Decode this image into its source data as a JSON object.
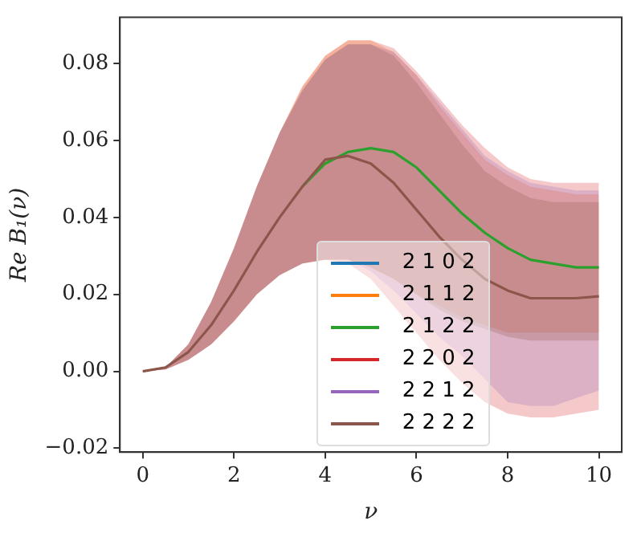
{
  "chart_data": {
    "type": "line",
    "xlabel": "ν",
    "ylabel": "Re B₁(ν)",
    "x": [
      0,
      0.5,
      1,
      1.5,
      2,
      2.5,
      3,
      3.5,
      4,
      4.5,
      5,
      5.5,
      6,
      6.5,
      7,
      7.5,
      8,
      8.5,
      9,
      9.5,
      10
    ],
    "series": [
      {
        "name": "2 1 0 2",
        "color": "#1f77b4",
        "values": [
          null,
          null,
          null,
          null,
          null,
          null,
          null,
          null,
          null,
          null,
          null,
          null,
          null,
          null,
          null,
          null,
          null,
          null,
          null,
          null,
          null
        ]
      },
      {
        "name": "2 1 1 2",
        "color": "#ff7f0e",
        "values": [
          null,
          null,
          null,
          null,
          null,
          null,
          null,
          null,
          null,
          null,
          null,
          null,
          null,
          null,
          null,
          null,
          null,
          null,
          null,
          null,
          null
        ],
        "lower": [
          0,
          0.0005,
          0.003,
          0.007,
          0.013,
          0.02,
          0.025,
          0.028,
          0.029,
          0.029,
          0.027,
          0.024,
          0.02,
          0.017,
          0.014,
          0.012,
          0.01,
          0.01,
          0.01,
          0.01,
          0.01
        ],
        "upper": [
          0,
          0.001,
          0.007,
          0.018,
          0.032,
          0.048,
          0.062,
          0.074,
          0.082,
          0.086,
          0.086,
          0.083,
          0.077,
          0.069,
          0.062,
          0.055,
          0.051,
          0.048,
          0.047,
          0.046,
          0.046
        ]
      },
      {
        "name": "2 1 2 2",
        "color": "#2ca02c",
        "values": [
          null,
          null,
          null,
          null,
          null,
          null,
          null,
          0.048,
          0.054,
          0.057,
          0.058,
          0.057,
          0.053,
          0.047,
          0.041,
          0.036,
          0.032,
          0.029,
          0.028,
          0.027,
          0.027
        ]
      },
      {
        "name": "2 2 0 2",
        "color": "#d62728",
        "values": [
          null,
          null,
          null,
          null,
          null,
          null,
          null,
          null,
          null,
          null,
          null,
          null,
          null,
          null,
          null,
          null,
          null,
          null,
          null,
          null,
          null
        ],
        "lower": [
          0,
          0.0005,
          0.003,
          0.007,
          0.013,
          0.02,
          0.025,
          0.028,
          0.029,
          0.028,
          0.024,
          0.017,
          0.01,
          0.003,
          -0.003,
          -0.008,
          -0.011,
          -0.012,
          -0.012,
          -0.011,
          -0.01
        ],
        "upper": [
          0,
          0.001,
          0.007,
          0.018,
          0.032,
          0.048,
          0.062,
          0.074,
          0.082,
          0.086,
          0.086,
          0.084,
          0.078,
          0.071,
          0.064,
          0.058,
          0.053,
          0.05,
          0.049,
          0.049,
          0.049
        ]
      },
      {
        "name": "2 2 1 2",
        "color": "#9467bd",
        "values": [
          null,
          null,
          null,
          null,
          null,
          null,
          null,
          null,
          null,
          null,
          null,
          null,
          null,
          null,
          null,
          null,
          null,
          null,
          null,
          null,
          null
        ],
        "lower": [
          0,
          0.0005,
          0.003,
          0.007,
          0.013,
          0.02,
          0.025,
          0.028,
          0.029,
          0.029,
          0.026,
          0.021,
          0.015,
          0.009,
          0.004,
          -0.002,
          -0.008,
          -0.009,
          -0.009,
          -0.007,
          -0.005
        ],
        "upper": [
          0,
          0.001,
          0.007,
          0.018,
          0.032,
          0.048,
          0.062,
          0.073,
          0.081,
          0.085,
          0.085,
          0.083,
          0.077,
          0.07,
          0.063,
          0.056,
          0.052,
          0.049,
          0.048,
          0.047,
          0.047
        ]
      },
      {
        "name": "2 2 2 2",
        "color": "#8c564b",
        "values": [
          0,
          0.001,
          0.005,
          0.012,
          0.021,
          0.031,
          0.04,
          0.048,
          0.055,
          0.056,
          0.054,
          0.049,
          0.042,
          0.035,
          0.029,
          0.024,
          0.021,
          0.019,
          0.019,
          0.019,
          0.0195
        ],
        "lower": [
          0,
          0.0005,
          0.003,
          0.007,
          0.013,
          0.02,
          0.025,
          0.028,
          0.029,
          0.029,
          0.027,
          0.024,
          0.02,
          0.016,
          0.013,
          0.011,
          0.009,
          0.008,
          0.008,
          0.008,
          0.008
        ],
        "upper": [
          0,
          0.001,
          0.007,
          0.018,
          0.032,
          0.048,
          0.062,
          0.073,
          0.081,
          0.085,
          0.085,
          0.082,
          0.075,
          0.067,
          0.059,
          0.052,
          0.048,
          0.045,
          0.044,
          0.044,
          0.044
        ]
      }
    ],
    "xlim": [
      -0.5,
      10.5
    ],
    "ylim": [
      -0.021,
      0.092
    ],
    "xticks": [
      0,
      2,
      4,
      6,
      8,
      10
    ],
    "yticks": [
      {
        "value": -0.02,
        "label": "−0.02"
      },
      {
        "value": 0,
        "label": "0.00"
      },
      {
        "value": 0.02,
        "label": "0.02"
      },
      {
        "value": 0.04,
        "label": "0.04"
      },
      {
        "value": 0.06,
        "label": "0.06"
      },
      {
        "value": 0.08,
        "label": "0.08"
      }
    ],
    "grid": false,
    "legend": "bottom",
    "marker": "none",
    "line_style": "solid"
  }
}
